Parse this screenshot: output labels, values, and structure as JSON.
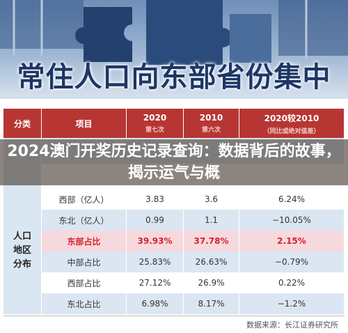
{
  "banner": {
    "title": "常住人口向东部省份集中"
  },
  "table": {
    "header": [
      "分类",
      "项目",
      "2020",
      "2010",
      "2020较2010"
    ],
    "subheader": [
      "第七次",
      "第六次",
      "（同比或绝对值差）"
    ],
    "category": "人口地区分布",
    "rows": [
      [
        "西部（亿人）",
        "3.83",
        "3.6",
        "6.24%"
      ],
      [
        "东北（亿人）",
        "0.99",
        "1.1",
        "−10.05%"
      ],
      [
        "东部占比",
        "39.93%",
        "37.78%",
        "2.15%"
      ],
      [
        "中部占比",
        "25.83%",
        "26.63%",
        "−0.79%"
      ],
      [
        "西部占比",
        "27.12%",
        "26.9%",
        "0.22%"
      ],
      [
        "东北占比",
        "6.98%",
        "8.17%",
        "−1.2%"
      ]
    ]
  },
  "overlay": {
    "headline": "2024澳门开奖历史记录查询：数据背后的故事，揭示运气与概"
  },
  "footer": {
    "source": "数据来源：长江证券研究所"
  }
}
